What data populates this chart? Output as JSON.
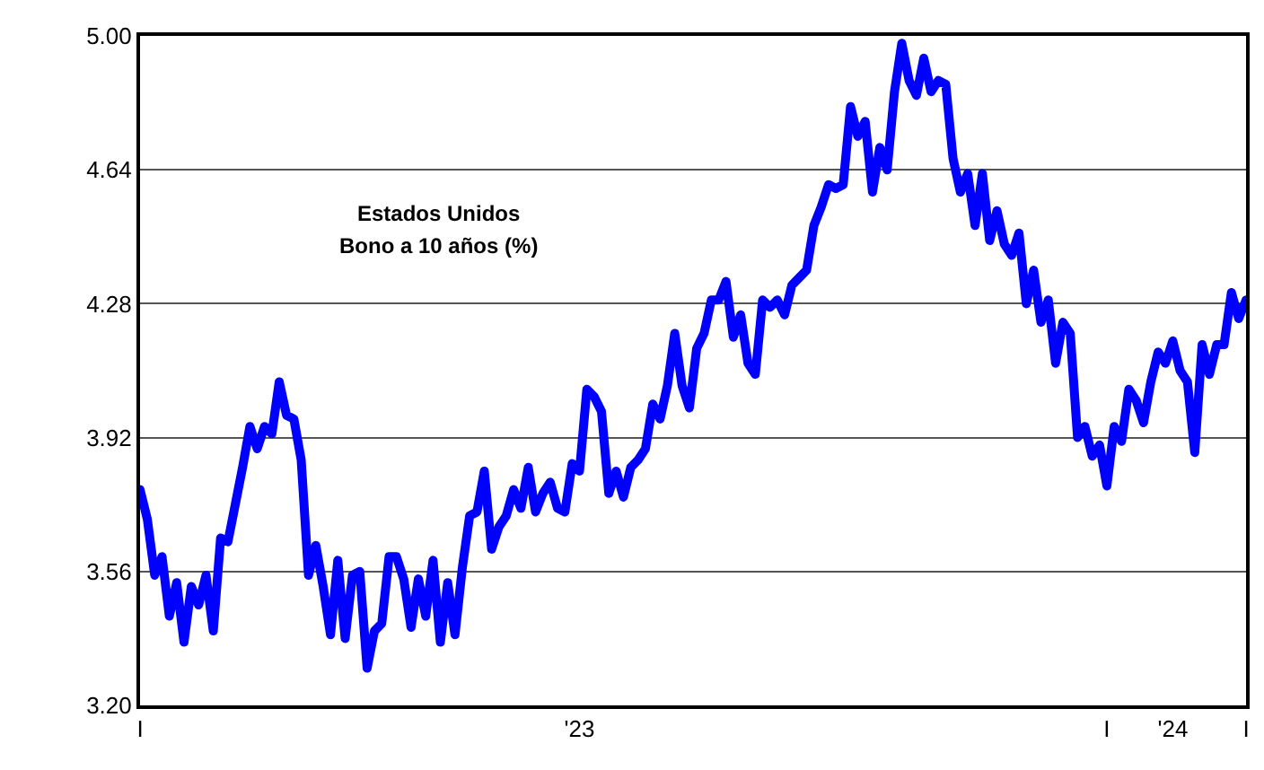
{
  "chart_data": {
    "type": "line",
    "title": "Estados Unidos",
    "subtitle": "Bono a 10 años (%)",
    "categories": [
      "I",
      null,
      null,
      null,
      null,
      null,
      null,
      null,
      null,
      null,
      null,
      null,
      null,
      null,
      null,
      null,
      null,
      null,
      null,
      null,
      null,
      null,
      null,
      null,
      null,
      null,
      null,
      null,
      null,
      null,
      null,
      null,
      null,
      null,
      null,
      null,
      null,
      null,
      null,
      null,
      null,
      null,
      null,
      null,
      null,
      null,
      null,
      null,
      null,
      null,
      null,
      null,
      null,
      null,
      null,
      null,
      null,
      null,
      null,
      null,
      "'23",
      null,
      null,
      null,
      null,
      null,
      null,
      null,
      null,
      null,
      null,
      null,
      null,
      null,
      null,
      null,
      null,
      null,
      null,
      null,
      null,
      null,
      null,
      null,
      null,
      null,
      null,
      null,
      null,
      null,
      null,
      null,
      null,
      null,
      null,
      null,
      null,
      null,
      null,
      null,
      null,
      null,
      null,
      null,
      null,
      null,
      null,
      null,
      null,
      null,
      null,
      null,
      null,
      null,
      null,
      null,
      null,
      null,
      null,
      null,
      null,
      null,
      null,
      null,
      null,
      null,
      null,
      null,
      null,
      null,
      null,
      null,
      "I",
      null,
      null,
      null,
      null,
      null,
      null,
      null,
      null,
      "'24",
      null,
      null,
      null,
      null,
      null,
      null,
      null,
      null,
      null,
      "I"
    ],
    "series": [
      {
        "color": "#0000ff",
        "values": [
          3.78,
          3.7,
          3.55,
          3.6,
          3.44,
          3.53,
          3.37,
          3.52,
          3.47,
          3.55,
          3.4,
          3.65,
          3.64,
          3.74,
          3.84,
          3.95,
          3.89,
          3.95,
          3.93,
          4.07,
          3.98,
          3.97,
          3.86,
          3.55,
          3.63,
          3.52,
          3.39,
          3.59,
          3.38,
          3.55,
          3.56,
          3.3,
          3.4,
          3.42,
          3.6,
          3.6,
          3.54,
          3.41,
          3.54,
          3.44,
          3.59,
          3.37,
          3.53,
          3.39,
          3.57,
          3.71,
          3.72,
          3.83,
          3.62,
          3.68,
          3.71,
          3.78,
          3.73,
          3.84,
          3.72,
          3.77,
          3.8,
          3.73,
          3.72,
          3.85,
          3.83,
          4.05,
          4.03,
          3.99,
          3.77,
          3.83,
          3.76,
          3.84,
          3.86,
          3.89,
          4.01,
          3.97,
          4.06,
          4.2,
          4.06,
          4.0,
          4.16,
          4.2,
          4.29,
          4.29,
          4.34,
          4.19,
          4.25,
          4.12,
          4.09,
          4.29,
          4.27,
          4.29,
          4.25,
          4.33,
          4.35,
          4.37,
          4.49,
          4.54,
          4.6,
          4.59,
          4.6,
          4.81,
          4.73,
          4.77,
          4.58,
          4.7,
          4.64,
          4.85,
          4.98,
          4.88,
          4.84,
          4.94,
          4.85,
          4.88,
          4.87,
          4.67,
          4.58,
          4.63,
          4.49,
          4.63,
          4.45,
          4.53,
          4.44,
          4.41,
          4.47,
          4.28,
          4.37,
          4.23,
          4.29,
          4.12,
          4.23,
          4.2,
          3.92,
          3.95,
          3.87,
          3.9,
          3.79,
          3.95,
          3.91,
          4.05,
          4.02,
          3.96,
          4.07,
          4.15,
          4.12,
          4.18,
          4.1,
          4.07,
          3.88,
          4.17,
          4.09,
          4.17,
          4.17,
          4.31,
          4.24,
          4.29
        ]
      }
    ],
    "ylim": [
      3.2,
      5.0
    ],
    "yticks": [
      {
        "value": 3.2,
        "label": "3.20"
      },
      {
        "value": 3.56,
        "label": "3.56"
      },
      {
        "value": 3.92,
        "label": "3.92"
      },
      {
        "value": 4.28,
        "label": "4.28"
      },
      {
        "value": 4.64,
        "label": "4.64"
      },
      {
        "value": 5.0,
        "label": "5.00"
      }
    ],
    "grid": "y",
    "marker": "none",
    "line_style": "solid"
  }
}
